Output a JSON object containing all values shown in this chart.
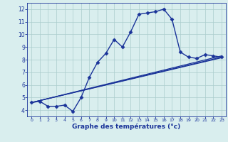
{
  "xlabel": "Graphe des températures (°c)",
  "background_color": "#d9eeee",
  "line_color": "#1a3399",
  "grid_color": "#aacccc",
  "xlim": [
    -0.5,
    23.5
  ],
  "ylim": [
    3.5,
    12.5
  ],
  "xticks": [
    0,
    1,
    2,
    3,
    4,
    5,
    6,
    7,
    8,
    9,
    10,
    11,
    12,
    13,
    14,
    15,
    16,
    17,
    18,
    19,
    20,
    21,
    22,
    23
  ],
  "yticks": [
    4,
    5,
    6,
    7,
    8,
    9,
    10,
    11,
    12
  ],
  "figwidth": 3.2,
  "figheight": 2.0,
  "dpi": 100,
  "series": [
    {
      "x": [
        0,
        1,
        2,
        3,
        4,
        5,
        6,
        7,
        8,
        9,
        10,
        11,
        12,
        13,
        14,
        15,
        16,
        17,
        18,
        19,
        20,
        21,
        22,
        23
      ],
      "y": [
        4.6,
        4.7,
        4.3,
        4.3,
        4.4,
        3.9,
        5.0,
        6.6,
        7.8,
        8.5,
        9.6,
        9.0,
        10.2,
        11.6,
        11.7,
        11.8,
        12.0,
        11.2,
        8.6,
        8.2,
        8.1,
        8.4,
        8.3,
        8.2
      ],
      "marker": "D",
      "markersize": 2.5,
      "linewidth": 1.0,
      "has_marker": true
    },
    {
      "x": [
        0,
        23
      ],
      "y": [
        4.6,
        8.15
      ],
      "has_marker": false,
      "linewidth": 0.9
    },
    {
      "x": [
        0,
        23
      ],
      "y": [
        4.6,
        8.2
      ],
      "has_marker": false,
      "linewidth": 0.9
    },
    {
      "x": [
        0,
        23
      ],
      "y": [
        4.6,
        8.3
      ],
      "has_marker": false,
      "linewidth": 0.9
    }
  ]
}
